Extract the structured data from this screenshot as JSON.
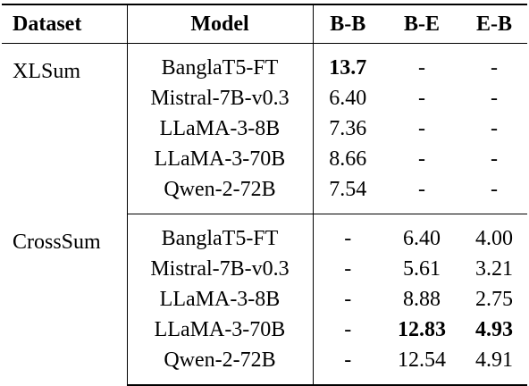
{
  "headers": [
    "Dataset",
    "Model",
    "B-B",
    "B-E",
    "E-B"
  ],
  "groups": [
    {
      "dataset": "XLSum",
      "rows": [
        {
          "model": "BanglaT5-FT",
          "bb": "13.7",
          "be": "-",
          "eb": "-"
        },
        {
          "model": "Mistral-7B-v0.3",
          "bb": "6.40",
          "be": "-",
          "eb": "-"
        },
        {
          "model": "LLaMA-3-8B",
          "bb": "7.36",
          "be": "-",
          "eb": "-"
        },
        {
          "model": "LLaMA-3-70B",
          "bb": "8.66",
          "be": "-",
          "eb": "-"
        },
        {
          "model": "Qwen-2-72B",
          "bb": "7.54",
          "be": "-",
          "eb": "-"
        }
      ]
    },
    {
      "dataset": "CrossSum",
      "rows": [
        {
          "model": "BanglaT5-FT",
          "bb": "-",
          "be": "6.40",
          "eb": "4.00"
        },
        {
          "model": "Mistral-7B-v0.3",
          "bb": "-",
          "be": "5.61",
          "eb": "3.21"
        },
        {
          "model": "LLaMA-3-8B",
          "bb": "-",
          "be": "8.88",
          "eb": "2.75"
        },
        {
          "model": "LLaMA-3-70B",
          "bb": "-",
          "be": "12.83",
          "eb": "4.93"
        },
        {
          "model": "Qwen-2-72B",
          "bb": "-",
          "be": "12.54",
          "eb": "4.91"
        }
      ]
    }
  ]
}
